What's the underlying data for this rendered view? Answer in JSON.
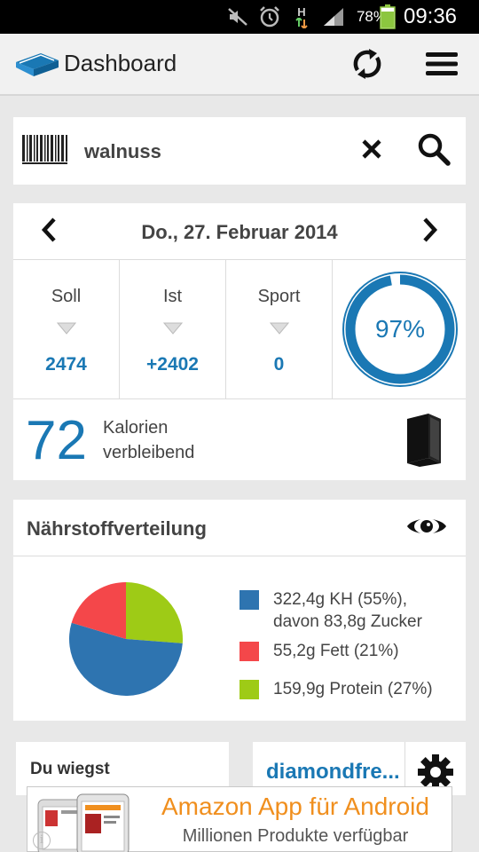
{
  "status_bar": {
    "battery_pct": "78%",
    "time": "09:36",
    "network_letter": "H",
    "icons": [
      "mute-icon",
      "alarm-icon",
      "hspa-icon",
      "signal-icon",
      "battery-icon"
    ]
  },
  "action_bar": {
    "title": "Dashboard",
    "icons": [
      "app-logo-icon",
      "sync-icon",
      "menu-icon"
    ]
  },
  "search": {
    "query": "walnuss",
    "icons": [
      "barcode-icon",
      "clear-icon",
      "search-icon"
    ]
  },
  "day": {
    "date": "Do., 27. Februar 2014",
    "stats": [
      {
        "label": "Soll",
        "value": "2474"
      },
      {
        "label": "Ist",
        "value": "+2402"
      },
      {
        "label": "Sport",
        "value": "0"
      }
    ],
    "progress": {
      "label": "97%",
      "fraction": 0.97
    },
    "remaining": {
      "value": "72",
      "line1": "Kalorien",
      "line2": "verbleibend"
    },
    "icons": [
      "prev-day-icon",
      "next-day-icon",
      "dropdown-triangle-icon",
      "diary-book-icon"
    ]
  },
  "nutrients": {
    "title": "Nährstoffverteilung",
    "legend": [
      {
        "line1": "322,4g KH (55%),",
        "line2": "davon 83,8g Zucker",
        "color": "#2e74b0"
      },
      {
        "line1": "55,2g Fett (21%)",
        "line2": "",
        "color": "#f4474a"
      },
      {
        "line1": "159,9g Protein (27%)",
        "line2": "",
        "color": "#9ecb16"
      }
    ],
    "icons": [
      "eye-icon"
    ]
  },
  "chart_data": {
    "type": "pie",
    "categories": [
      "KH",
      "Fett",
      "Protein"
    ],
    "values": [
      55,
      21,
      27
    ],
    "colors": [
      "#2e74b0",
      "#f4474a",
      "#9ecb16"
    ]
  },
  "cards": {
    "weight_title": "Du wiegst",
    "friend_name": "diamondfre...",
    "icons": [
      "gear-icon"
    ]
  },
  "ad": {
    "line1": "Amazon App für Android",
    "line2": "Millionen Produkte verfügbar",
    "info": "i"
  },
  "colors": {
    "accent": "#1a78b4",
    "ad_orange": "#f08f1e",
    "background": "#e8e8e8"
  }
}
